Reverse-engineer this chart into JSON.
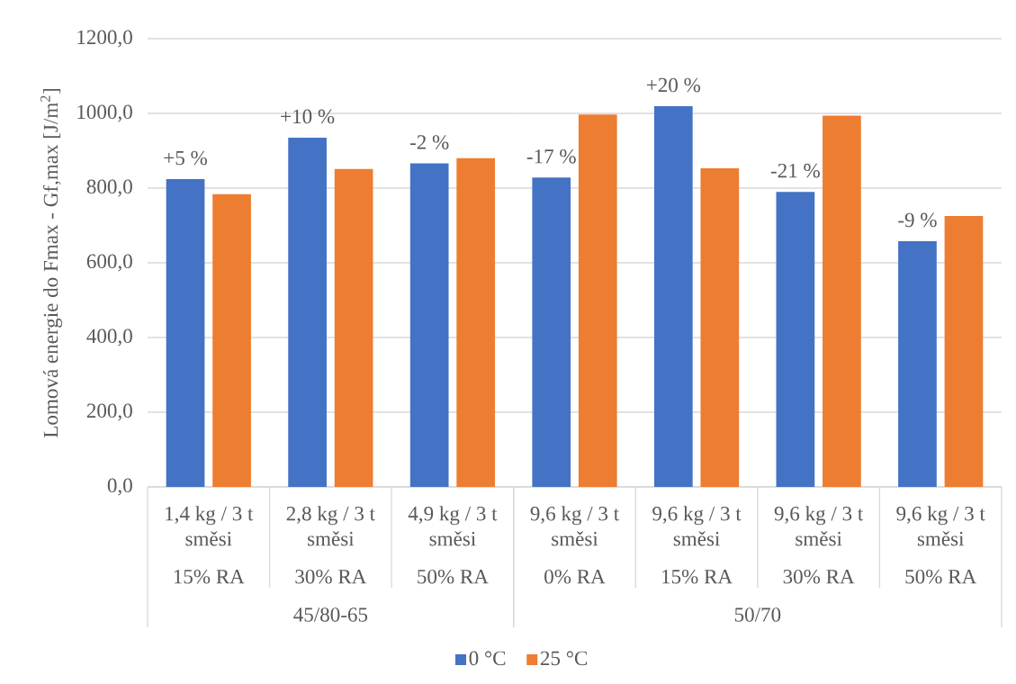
{
  "chart_data": [
    {
      "type": "bar",
      "categories": [
        "1,4 kg / 3 t směsi\n15% RA",
        "2,8 kg / 3 t směsi\n30% RA",
        "4,9 kg / 3 t směsi\n50% RA"
      ],
      "xlabel": "45/80-65",
      "ylabel": "Lomová energie do Fmax - Gf,max [J/m$^{2}$]",
      "ylim": [
        0,
        1200
      ],
      "yticks": [
        {
          "value": 0,
          "label": "0,0"
        },
        {
          "value": 200,
          "label": "200,0"
        },
        {
          "value": 400,
          "label": "400,0"
        },
        {
          "value": 600,
          "label": "600,0"
        },
        {
          "value": 800,
          "label": "800,0"
        },
        {
          "value": 1000,
          "label": "1000,0"
        },
        {
          "value": 1200,
          "label": "1200,0"
        }
      ],
      "grid": "y",
      "legend": false,
      "series": [
        {
          "color": "#4472c4",
          "values": [
            824,
            935,
            866
          ]
        },
        {
          "color": "#ed7d31",
          "values": [
            784,
            851,
            880
          ]
        }
      ],
      "annotations": [
        "+5 %",
        "+10 %",
        "-2 %"
      ]
    },
    {
      "type": "bar",
      "categories": [
        "9,6 kg / 3 t směsi\n0% RA",
        "9,6 kg / 3 t směsi\n15% RA",
        "9,6 kg / 3 t směsi\n30% RA",
        "9,6 kg / 3 t směsi\n50% RA"
      ],
      "xlabel": "50/70",
      "ylim": [
        0,
        1200
      ],
      "yticks": [
        0,
        200,
        400,
        600,
        800,
        1000,
        1200
      ],
      "tick_labels": "x",
      "grid": "y",
      "legend": "bottom",
      "series": [
        {
          "name": "0 °C",
          "color": "#4472c4",
          "values": [
            828,
            1019,
            790,
            658
          ]
        },
        {
          "name": "25 °C",
          "color": "#ed7d31",
          "values": [
            997,
            853,
            994,
            725
          ]
        }
      ],
      "annotations": [
        "-17 %",
        "+20 %",
        "-21 %",
        "-9 %"
      ]
    }
  ]
}
